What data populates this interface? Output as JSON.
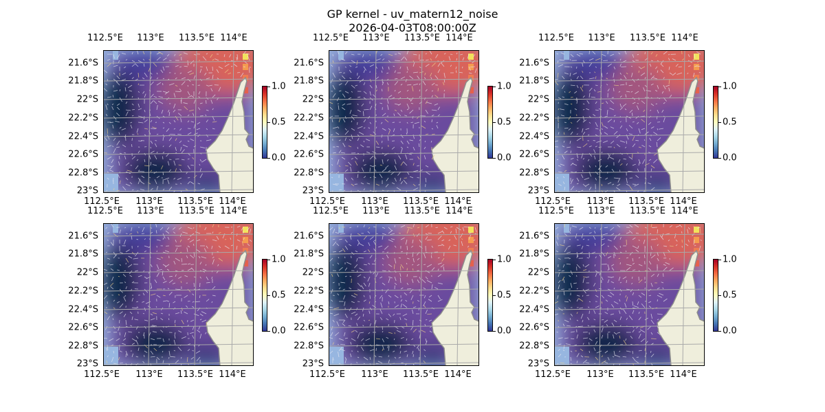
{
  "figure": {
    "title": "GP kernel - uv_matern12_noise",
    "subtitle": "2026-04-03T08:00:00Z"
  },
  "axes": {
    "lon_ticks": [
      "112.5°E",
      "113°E",
      "113.5°E",
      "114°E"
    ],
    "lat_ticks": [
      "21.6°S",
      "21.8°S",
      "22°S",
      "22.2°S",
      "22.4°S",
      "22.6°S",
      "22.8°S",
      "23°S"
    ]
  },
  "colorbar": {
    "ticks": [
      "0.0",
      "0.5",
      "1.0"
    ],
    "range": [
      0,
      1
    ],
    "colormap": "RdYlBu_r"
  },
  "panels": [
    {
      "index": 1
    },
    {
      "index": 2
    },
    {
      "index": 3
    },
    {
      "index": 4
    },
    {
      "index": 5
    },
    {
      "index": 6
    }
  ],
  "colors": {
    "land": "#efeedc",
    "ocean_nan": "#97b6e0",
    "gridlines": "#a9a9a9",
    "field_low": "#0b2848",
    "field_mid": "#6a4b9e",
    "field_high": "#d9645a"
  }
}
